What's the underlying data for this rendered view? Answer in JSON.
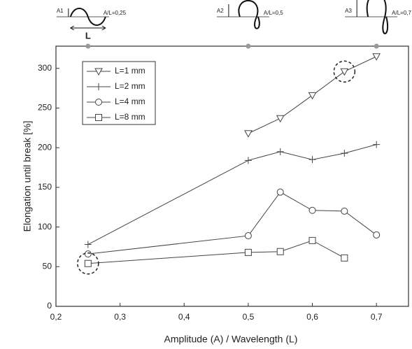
{
  "chart_data": {
    "type": "line",
    "x_label": "Amplitude (A) / Wavelength (L)",
    "y_label": "Elongation until break [%]",
    "xlim": [
      0.2,
      0.75
    ],
    "ylim": [
      0,
      328
    ],
    "xticks": [
      {
        "value": 0.2,
        "label": "0,2"
      },
      {
        "value": 0.3,
        "label": "0,3"
      },
      {
        "value": 0.4,
        "label": "0,4"
      },
      {
        "value": 0.5,
        "label": "0,5"
      },
      {
        "value": 0.6,
        "label": "0,6"
      },
      {
        "value": 0.7,
        "label": "0,7"
      }
    ],
    "yticks": [
      0,
      50,
      100,
      150,
      200,
      250,
      300
    ],
    "legend": "upper left",
    "series": [
      {
        "name": "L=1 mm",
        "color": "#444444",
        "marker": "triangle-down",
        "x": [
          0.5,
          0.55,
          0.6,
          0.65,
          0.7
        ],
        "values": [
          218,
          237,
          266,
          296,
          315
        ]
      },
      {
        "name": "L=2 mm",
        "color": "#444444",
        "marker": "plus",
        "x": [
          0.25,
          0.5,
          0.55,
          0.6,
          0.65,
          0.7
        ],
        "values": [
          78,
          184,
          195,
          185,
          193,
          204
        ]
      },
      {
        "name": "L=4 mm",
        "color": "#444444",
        "marker": "circle",
        "x": [
          0.25,
          0.5,
          0.55,
          0.6,
          0.65,
          0.7
        ],
        "values": [
          66,
          89,
          144,
          121,
          120,
          90
        ]
      },
      {
        "name": "L=8 mm",
        "color": "#444444",
        "marker": "square",
        "x": [
          0.25,
          0.5,
          0.55,
          0.6,
          0.65
        ],
        "values": [
          54,
          68,
          69,
          83,
          61
        ]
      }
    ],
    "annotations": [
      {
        "x": 0.25,
        "amplitude": "A1",
        "ratio": "A/L=0,25",
        "wavelength": "L"
      },
      {
        "x": 0.5,
        "amplitude": "A2",
        "ratio": "A/L=0,5"
      },
      {
        "x": 0.7,
        "amplitude": "A3",
        "ratio": "A/L=0,7"
      }
    ]
  }
}
